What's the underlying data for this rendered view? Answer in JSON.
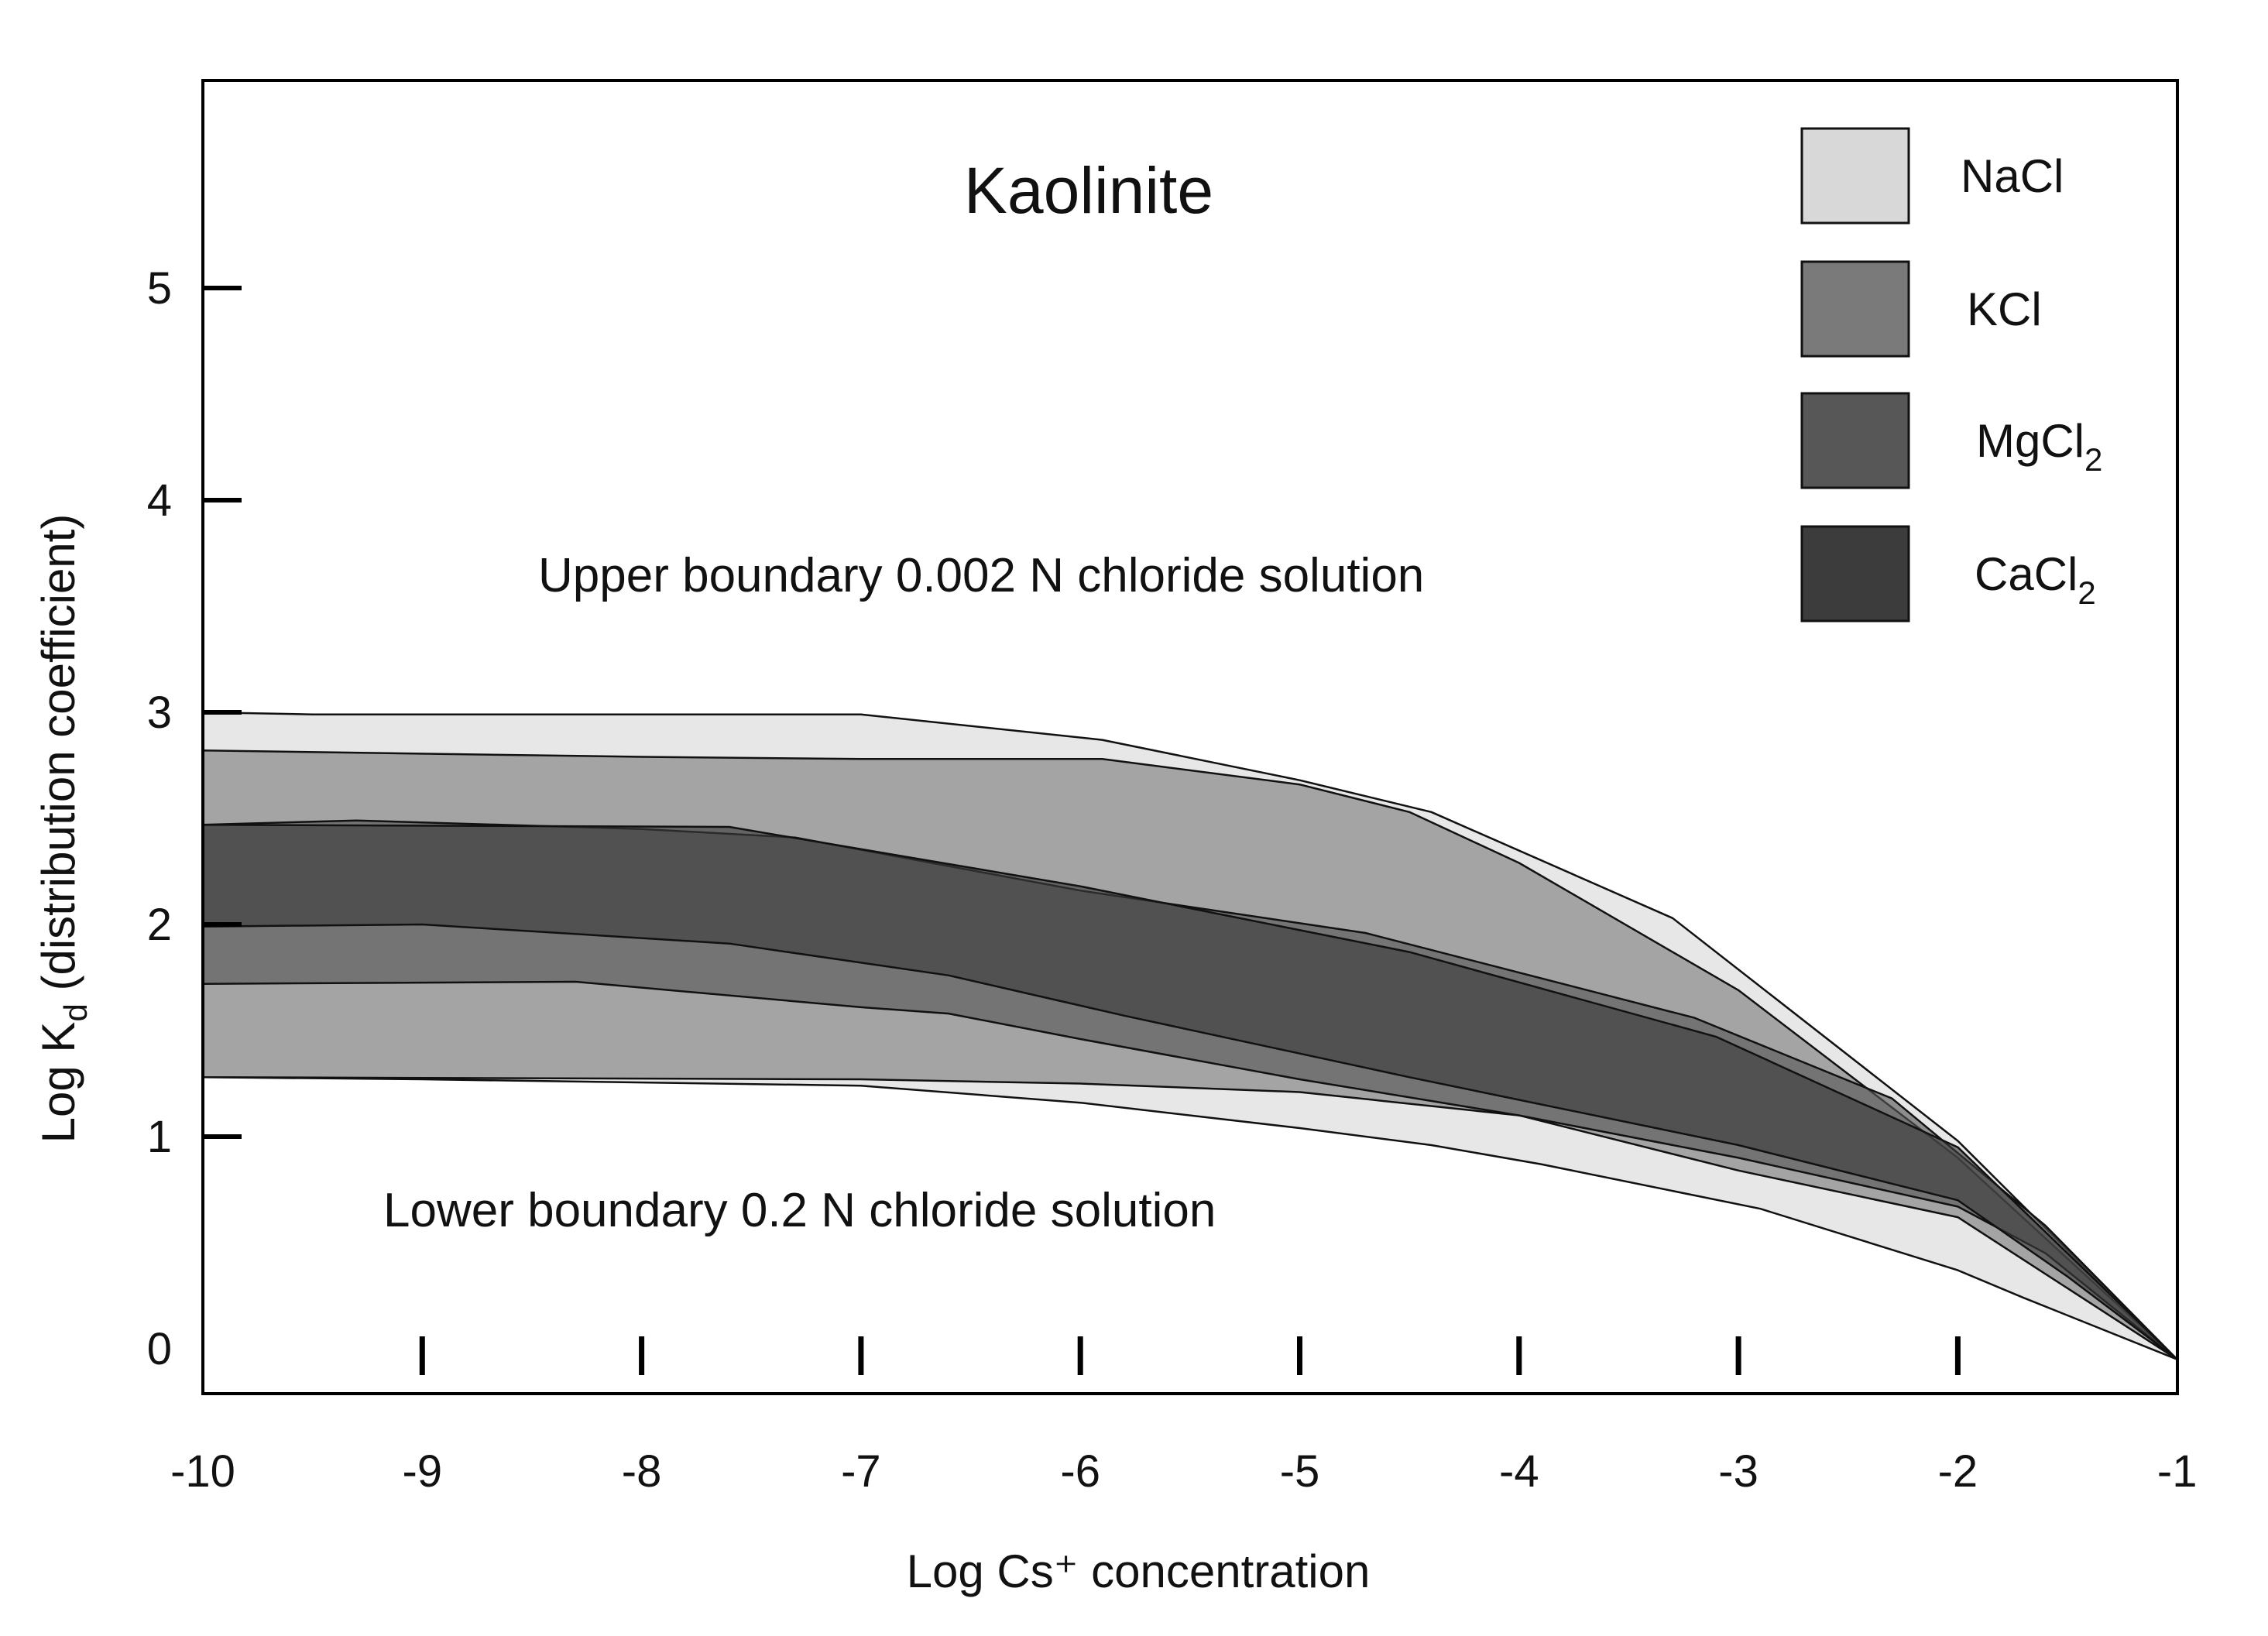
{
  "chart_data": {
    "type": "area",
    "title": "Kaolinite",
    "xlabel": "Log Cs⁺ concentration",
    "ylabel": {
      "prefix": "Log K",
      "subscript": "d",
      "suffix": " (distribution coefficient)"
    },
    "xlim": [
      -10,
      -1
    ],
    "ylim": [
      -0.2,
      6.0
    ],
    "x_ticks": [
      -10,
      -9,
      -8,
      -7,
      -6,
      -5,
      -4,
      -3,
      -2,
      -1
    ],
    "x_tick_labels": [
      "-10",
      "-9",
      "-8",
      "-7",
      "-6",
      "-5",
      "-4",
      "-3",
      "-2",
      "-1"
    ],
    "y_ticks": [
      0,
      1,
      2,
      3,
      4,
      5
    ],
    "y_tick_labels": [
      "0",
      "1",
      "2",
      "3",
      "4",
      "5"
    ],
    "grid": false,
    "legend_position": "top-right",
    "annotations": [
      {
        "key": "upper",
        "text": "Upper boundary 0.002 N chloride solution"
      },
      {
        "key": "lower",
        "text": "Lower boundary 0.2 N chloride solution"
      }
    ],
    "series": [
      {
        "name": "NaCl",
        "legend": {
          "base": "NaCl",
          "sub": ""
        },
        "color": "#d8d8d8",
        "fill_opacity": 0.62,
        "upper": [
          [
            -10,
            3.0
          ],
          [
            -9.5,
            2.99
          ],
          [
            -8,
            2.99
          ],
          [
            -7,
            2.99
          ],
          [
            -5.9,
            2.87
          ],
          [
            -5,
            2.68
          ],
          [
            -4.4,
            2.53
          ],
          [
            -3.3,
            2.03
          ],
          [
            -2,
            0.98
          ],
          [
            -1,
            -0.05
          ]
        ],
        "lower": [
          [
            -10,
            1.28
          ],
          [
            -9,
            1.27
          ],
          [
            -7,
            1.24
          ],
          [
            -6,
            1.16
          ],
          [
            -5,
            1.04
          ],
          [
            -4.4,
            0.96
          ],
          [
            -3.9,
            0.87
          ],
          [
            -2.9,
            0.66
          ],
          [
            -2,
            0.37
          ],
          [
            -1.7,
            0.24
          ],
          [
            -1,
            -0.05
          ]
        ]
      },
      {
        "name": "KCl",
        "legend": {
          "base": "KCl",
          "sub": ""
        },
        "color": "#7a7a7a",
        "fill_opacity": 0.62,
        "upper": [
          [
            -10,
            2.82
          ],
          [
            -8,
            2.79
          ],
          [
            -7,
            2.78
          ],
          [
            -5.9,
            2.78
          ],
          [
            -5,
            2.66
          ],
          [
            -4.5,
            2.53
          ],
          [
            -4,
            2.29
          ],
          [
            -3,
            1.69
          ],
          [
            -2,
            0.9
          ],
          [
            -1,
            -0.05
          ]
        ],
        "lower": [
          [
            -10,
            1.28
          ],
          [
            -7,
            1.27
          ],
          [
            -6,
            1.25
          ],
          [
            -5,
            1.21
          ],
          [
            -4,
            1.1
          ],
          [
            -3,
            0.84
          ],
          [
            -2,
            0.62
          ],
          [
            -1,
            -0.05
          ]
        ]
      },
      {
        "name": "MgCl",
        "legend": {
          "base": "MgCl",
          "sub": "2"
        },
        "color": "#575757",
        "fill_opacity": 0.62,
        "upper": [
          [
            -10,
            2.47
          ],
          [
            -9.3,
            2.49
          ],
          [
            -8,
            2.45
          ],
          [
            -7.3,
            2.41
          ],
          [
            -6,
            2.16
          ],
          [
            -4.7,
            1.96
          ],
          [
            -3.2,
            1.56
          ],
          [
            -2.3,
            1.18
          ],
          [
            -1.6,
            0.58
          ],
          [
            -1,
            -0.05
          ]
        ],
        "lower": [
          [
            -10,
            1.72
          ],
          [
            -8.3,
            1.73
          ],
          [
            -7,
            1.61
          ],
          [
            -6.6,
            1.58
          ],
          [
            -6,
            1.46
          ],
          [
            -5,
            1.27
          ],
          [
            -4,
            1.1
          ],
          [
            -3,
            0.9
          ],
          [
            -2,
            0.67
          ],
          [
            -1.6,
            0.45
          ],
          [
            -1,
            -0.05
          ]
        ]
      },
      {
        "name": "CaCl",
        "legend": {
          "base": "CaCl",
          "sub": "2"
        },
        "color": "#3c3c3c",
        "fill_opacity": 0.62,
        "upper": [
          [
            -10,
            2.47
          ],
          [
            -7.6,
            2.46
          ],
          [
            -6,
            2.18
          ],
          [
            -4.5,
            1.87
          ],
          [
            -3.1,
            1.47
          ],
          [
            -2,
            0.95
          ],
          [
            -1,
            -0.05
          ]
        ],
        "lower": [
          [
            -10,
            1.99
          ],
          [
            -9,
            2.0
          ],
          [
            -7.6,
            1.91
          ],
          [
            -6.6,
            1.76
          ],
          [
            -5.8,
            1.57
          ],
          [
            -4.5,
            1.28
          ],
          [
            -3,
            0.96
          ],
          [
            -2,
            0.7
          ],
          [
            -1.5,
            0.34
          ],
          [
            -1,
            -0.05
          ]
        ]
      }
    ]
  }
}
